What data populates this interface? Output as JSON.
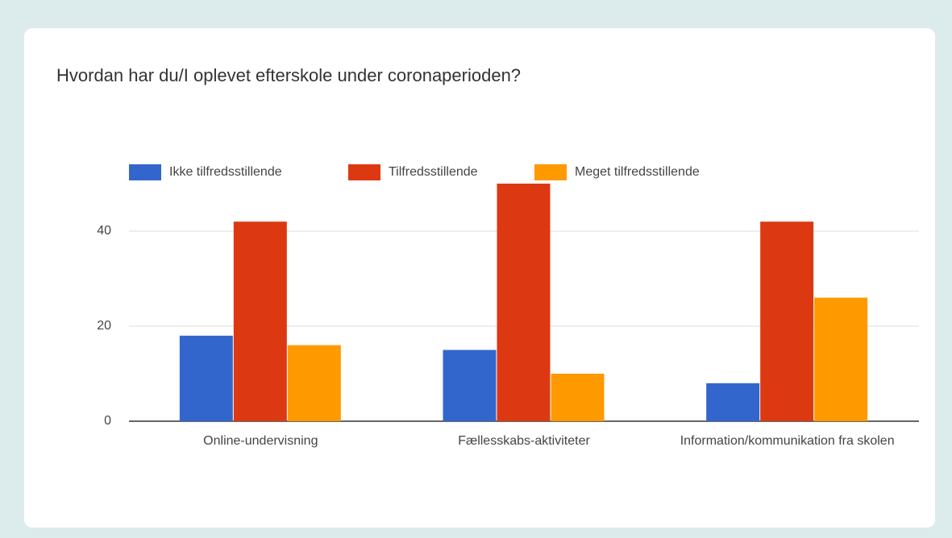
{
  "chart_data": {
    "type": "bar",
    "title": "Hvordan har du/I oplevet efterskole under coronaperioden?",
    "categories": [
      "Online-undervisning",
      "Fællesskabs-aktiviteter",
      "Information/kommunikation fra skolen"
    ],
    "series": [
      {
        "name": "Ikke tilfredsstillende",
        "color": "#3366cc",
        "values": [
          18,
          15,
          8
        ]
      },
      {
        "name": "Tilfredsstillende",
        "color": "#dc3912",
        "values": [
          42,
          50,
          42
        ]
      },
      {
        "name": "Meget tilfredsstillende",
        "color": "#ff9900",
        "values": [
          16,
          10,
          26
        ]
      }
    ],
    "ylim": [
      0,
      50
    ],
    "yticks": [
      0,
      20,
      40
    ],
    "grid": true,
    "legend": "top"
  }
}
